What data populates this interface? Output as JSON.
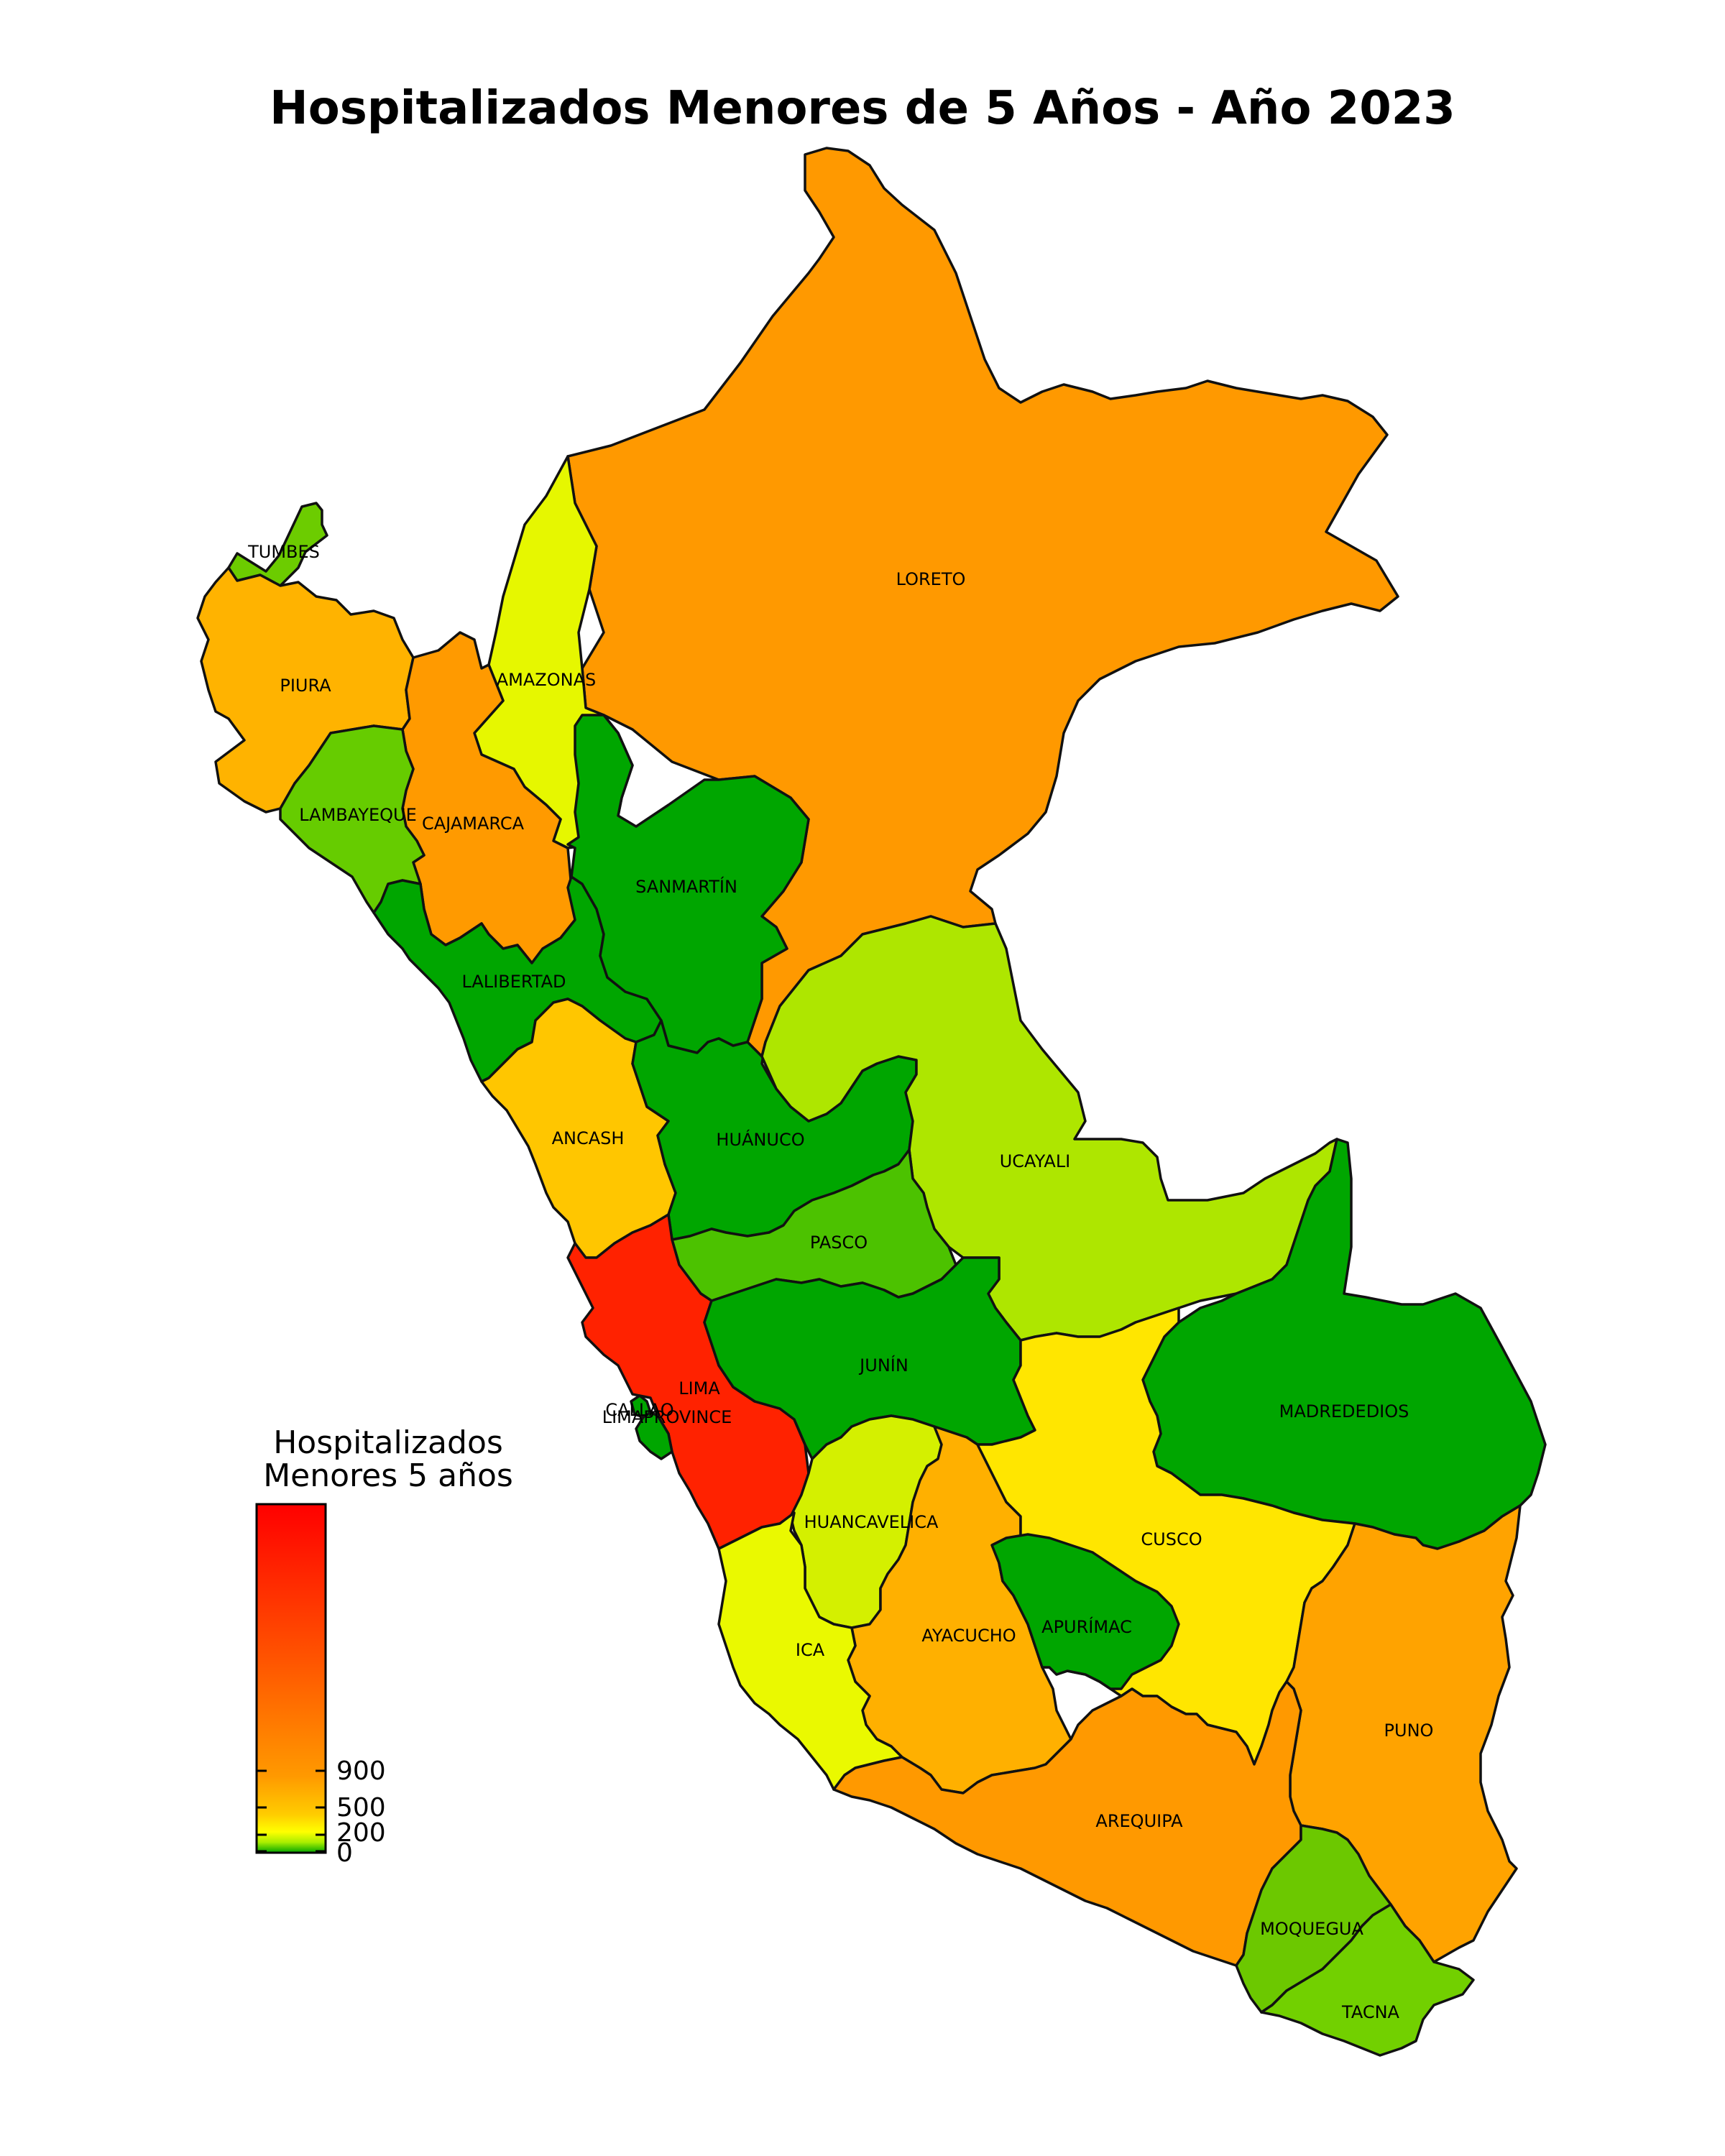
{
  "map": {
    "title": "Hospitalizados Menores de 5 Años - Año 2023",
    "regions": [
      {
        "key": "tumbes",
        "label": "TUMBES",
        "color": "#6ccc00"
      },
      {
        "key": "piura",
        "label": "PIURA",
        "color": "#ffb300"
      },
      {
        "key": "lambayeque",
        "label": "LAMBAYEQUE",
        "color": "#66cc00"
      },
      {
        "key": "cajamarca",
        "label": "CAJAMARCA",
        "color": "#ff9a00"
      },
      {
        "key": "amazonas",
        "label": "AMAZONAS",
        "color": "#e6f700"
      },
      {
        "key": "loreto",
        "label": "LORETO",
        "color": "#ff9900"
      },
      {
        "key": "sanmartin",
        "label": "SANMARTÍN",
        "color": "#00a600"
      },
      {
        "key": "lalibertad",
        "label": "LALIBERTAD",
        "color": "#00a600"
      },
      {
        "key": "ancash",
        "label": "ANCASH",
        "color": "#ffc600"
      },
      {
        "key": "huanuco",
        "label": "HUÁNUCO",
        "color": "#00a600"
      },
      {
        "key": "ucayali",
        "label": "UCAYALI",
        "color": "#aee600"
      },
      {
        "key": "pasco",
        "label": "PASCO",
        "color": "#4cc200"
      },
      {
        "key": "lima",
        "label": "LIMA",
        "color": "#ff2200"
      },
      {
        "key": "callao",
        "label": "CALLAO",
        "color": "#00a600"
      },
      {
        "key": "limaprovince",
        "label": "LIMAPROVINCE",
        "color": "#00a600"
      },
      {
        "key": "junin",
        "label": "JUNÍN",
        "color": "#00a600"
      },
      {
        "key": "madrededios",
        "label": "MADREDEDIOS",
        "color": "#00a600"
      },
      {
        "key": "huancavelica",
        "label": "HUANCAVELICA",
        "color": "#d4f000"
      },
      {
        "key": "cusco",
        "label": "CUSCO",
        "color": "#ffe600"
      },
      {
        "key": "ica",
        "label": "ICA",
        "color": "#eaf900"
      },
      {
        "key": "ayacucho",
        "label": "AYACUCHO",
        "color": "#ffb000"
      },
      {
        "key": "apurimac",
        "label": "APURÍMAC",
        "color": "#00a600"
      },
      {
        "key": "puno",
        "label": "PUNO",
        "color": "#ffa300"
      },
      {
        "key": "arequipa",
        "label": "AREQUIPA",
        "color": "#ff9900"
      },
      {
        "key": "moquegua",
        "label": "MOQUEGUA",
        "color": "#6cc800"
      },
      {
        "key": "tacna",
        "label": "TACNA",
        "color": "#72d000"
      }
    ],
    "legend": {
      "title_line1": "Hospitalizados",
      "title_line2": "Menores 5 años",
      "ticks": [
        {
          "value": "900"
        },
        {
          "value": "500"
        },
        {
          "value": "200"
        },
        {
          "value": "0"
        }
      ]
    }
  }
}
